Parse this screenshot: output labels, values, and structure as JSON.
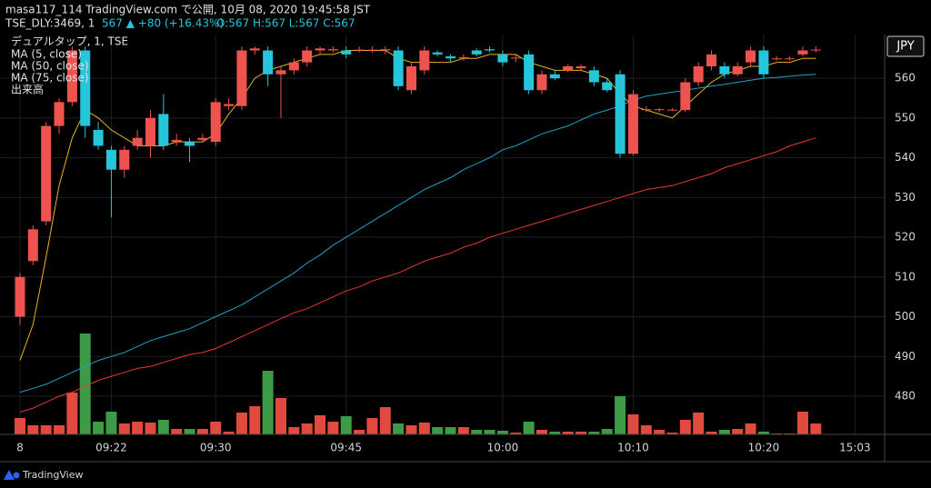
{
  "chart_data": {
    "type": "candlestick",
    "title": "masa117_114 TradingView.com で公開, 10月 08, 2020 19:45:58 JST",
    "subtitle": "TSE_DLY:3469, 1",
    "quote": "567 ▲ +80 (+16.43%)",
    "ohlc_text": "O:567 H:567 L:567 C:567",
    "name": "デュアルタップ, 1, TSE",
    "currency": "JPY",
    "branding": "TradingView",
    "up_color": "#ef5350",
    "down_color": "#26c6da",
    "grid": true,
    "ylim": [
      470.4,
      571
    ],
    "yticks": [
      480,
      490,
      500,
      510,
      520,
      530,
      540,
      550,
      560
    ],
    "categories": [
      "8",
      null,
      null,
      null,
      null,
      null,
      null,
      "09:22",
      null,
      null,
      null,
      null,
      null,
      null,
      null,
      "09:30",
      null,
      null,
      null,
      null,
      null,
      null,
      null,
      null,
      null,
      "09:45",
      null,
      null,
      null,
      null,
      null,
      null,
      null,
      null,
      null,
      null,
      null,
      "10:00",
      null,
      null,
      null,
      null,
      null,
      null,
      null,
      null,
      null,
      "10:10",
      null,
      null,
      null,
      null,
      null,
      null,
      null,
      null,
      null,
      "10:20",
      null,
      null,
      null,
      null,
      null,
      null,
      "15:03"
    ],
    "open": [
      500,
      514,
      524,
      548,
      554,
      567,
      547,
      542,
      537,
      543,
      543,
      551,
      544,
      544,
      544.5,
      544,
      553,
      553,
      567,
      567,
      561,
      562,
      564,
      567,
      567,
      567,
      567,
      567,
      567,
      567,
      557,
      562,
      566.5,
      565.5,
      565,
      567,
      567.3,
      566,
      565,
      566,
      557,
      561,
      562,
      562.5,
      562,
      559,
      561,
      541,
      552,
      552,
      552,
      552,
      559,
      563,
      563,
      561,
      564,
      567,
      565,
      565,
      566,
      567,
      null,
      null,
      null
    ],
    "high": [
      511,
      523,
      549,
      555,
      568,
      568,
      549,
      543,
      543,
      547,
      552,
      556,
      546,
      545,
      546,
      555,
      555,
      568,
      568,
      568,
      563,
      565,
      568,
      568,
      568,
      568,
      568,
      568,
      568,
      568,
      564,
      568,
      567,
      566,
      566,
      567.5,
      568,
      567,
      566,
      567,
      562,
      562,
      563.5,
      563.5,
      563,
      560,
      562,
      557,
      553,
      552.5,
      552.5,
      560,
      564,
      567,
      564,
      564,
      568,
      568,
      565.5,
      565.5,
      568,
      568,
      null,
      null,
      null
    ],
    "low": [
      498,
      513,
      523,
      546,
      553,
      545,
      542,
      525,
      535,
      542,
      540,
      542,
      543,
      539,
      544,
      543,
      552,
      552,
      566,
      558,
      550,
      561,
      563,
      566,
      566.5,
      565,
      566.5,
      566.5,
      566,
      557,
      556,
      561,
      565.5,
      564,
      564.5,
      565.5,
      566.5,
      563,
      564,
      556,
      556,
      559.5,
      561.5,
      562,
      558,
      556.5,
      540,
      540.5,
      551.5,
      551.5,
      551.8,
      551.5,
      558,
      562,
      560,
      560.5,
      563,
      560,
      564.5,
      564.5,
      565.5,
      566.5,
      null,
      null,
      null
    ],
    "close": [
      510,
      522,
      548,
      554,
      567,
      548,
      543,
      537,
      542,
      545,
      550,
      543,
      544.5,
      543,
      545,
      554,
      553.5,
      567,
      567.5,
      561,
      562,
      564,
      567,
      567.5,
      567.3,
      566,
      567.2,
      567.2,
      567.3,
      558,
      563,
      567,
      566,
      565,
      565.3,
      566,
      567,
      564,
      565.2,
      557,
      561,
      560,
      563,
      563,
      559,
      557,
      541,
      556,
      552.2,
      552.2,
      552.1,
      559,
      563,
      566,
      561,
      563,
      567,
      561,
      565,
      565,
      567,
      567.2,
      null,
      null,
      null
    ],
    "lines": [
      {
        "name": "MA (5, close)",
        "color": "#e6b422",
        "values": [
          489,
          498,
          515,
          533,
          545,
          552,
          550,
          547,
          545,
          543,
          543,
          543,
          544,
          544,
          544,
          546,
          551,
          555,
          560,
          562,
          563,
          564,
          565,
          566,
          566,
          567,
          567,
          567,
          567,
          565,
          564,
          564,
          564,
          564,
          565,
          565,
          566,
          566,
          566,
          564,
          563,
          562,
          562,
          562,
          561,
          560,
          556,
          553,
          552,
          551,
          550,
          553,
          556,
          559,
          561,
          562,
          563,
          563,
          564,
          564,
          565,
          565,
          null,
          null,
          null
        ]
      },
      {
        "name": "MA (50, close)",
        "color": "#1fa3c4",
        "values": [
          481,
          482,
          483,
          484.5,
          486,
          487.5,
          489,
          490,
          491,
          492.5,
          494,
          495,
          496,
          497,
          498.5,
          500,
          501.5,
          503,
          505,
          507,
          509,
          511,
          513.5,
          515.5,
          518,
          520,
          522,
          524,
          526,
          528,
          530,
          532,
          533.5,
          535,
          537,
          538.5,
          540,
          542,
          543,
          544.5,
          546,
          547,
          548,
          549.5,
          551,
          552,
          553,
          554.5,
          555.5,
          556,
          556.5,
          557,
          557.5,
          558,
          558.5,
          559,
          559.5,
          560,
          560.2,
          560.5,
          560.8,
          561,
          null,
          null,
          null
        ]
      },
      {
        "name": "MA (75, close)",
        "color": "#e5392e",
        "values": [
          476,
          477,
          478.5,
          480,
          481,
          482.5,
          484,
          485,
          486,
          487,
          487.5,
          488.5,
          489.5,
          490.5,
          491,
          492,
          493.5,
          495,
          496.5,
          498,
          499.5,
          501,
          502,
          503.5,
          505,
          506.5,
          507.5,
          509,
          510,
          511,
          512.5,
          514,
          515,
          516,
          517.5,
          518.5,
          520,
          521,
          522,
          523,
          524,
          525,
          526,
          527,
          528,
          529,
          530,
          531,
          532,
          532.5,
          533,
          534,
          535,
          536,
          537.5,
          538.5,
          539.5,
          540.5,
          541.5,
          543,
          544,
          545,
          null,
          null,
          null
        ]
      }
    ],
    "volume": {
      "name": "出来高",
      "up_color": "#e04a3f",
      "down_color": "#3d9b48",
      "ylim": [
        0,
        440
      ],
      "values": [
        18,
        10,
        10,
        10,
        46,
        111,
        14,
        25,
        12,
        14,
        13,
        16,
        6,
        6,
        6,
        14,
        3,
        24,
        31,
        70,
        40,
        8,
        12,
        21,
        14,
        20,
        5,
        18,
        30,
        12,
        10,
        13,
        8,
        8,
        8,
        5,
        5,
        4,
        2,
        14,
        5,
        3,
        3,
        3,
        3,
        6,
        42,
        22,
        10,
        5,
        2,
        16,
        24,
        3,
        5,
        6,
        12,
        3,
        1,
        1,
        25,
        12,
        null,
        null,
        null
      ]
    }
  }
}
